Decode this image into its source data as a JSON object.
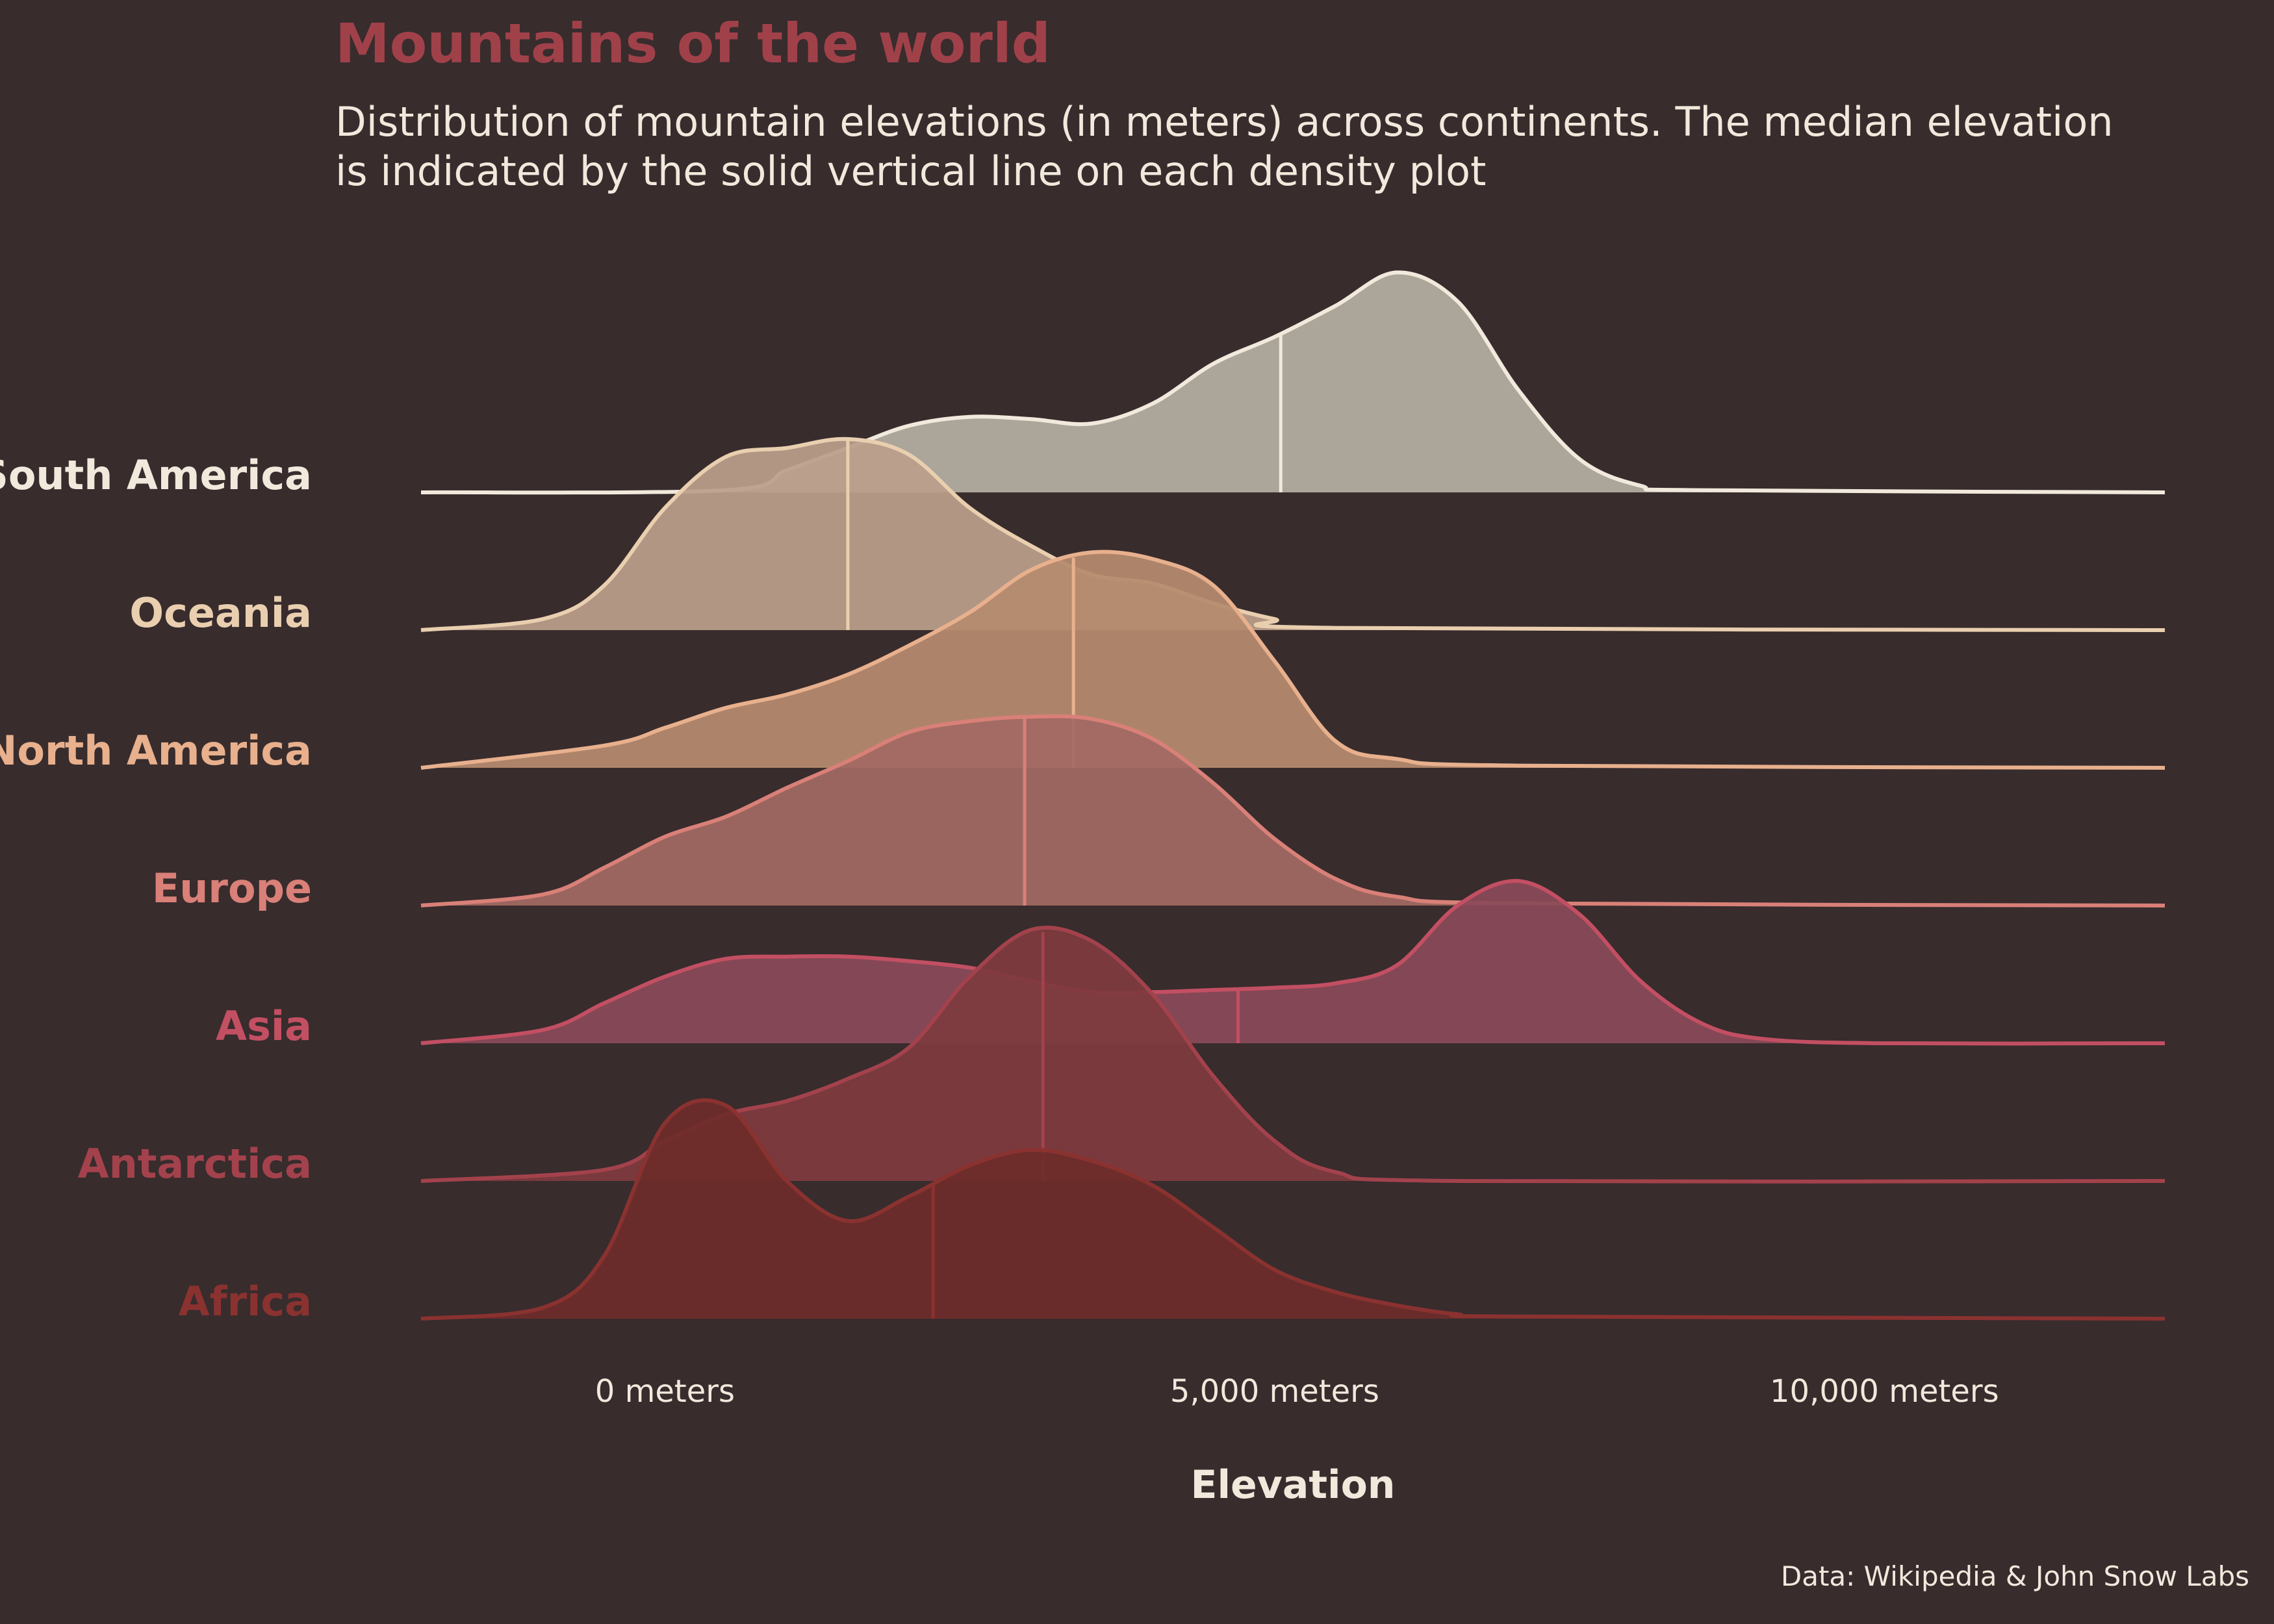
{
  "title": "Mountains of the world",
  "subtitle": "Distribution of mountain elevations (in meters) across continents. The median elevation is indicated by the solid vertical line on each density plot",
  "source": "Data: Wikipedia & John Snow Labs",
  "colors": {
    "background": "#382C2D",
    "text": "#F1E9DC",
    "title": "#A0414A"
  },
  "chart_data": {
    "type": "ridgeline density",
    "title": "Mountains of the world",
    "xlabel": "Elevation",
    "ylabel": "",
    "xlim": [
      -2000,
      12300
    ],
    "x_ticks": [
      {
        "value": 0,
        "label": "0 meters"
      },
      {
        "value": 5000,
        "label": "5,000 meters"
      },
      {
        "value": 10000,
        "label": "10,000 meters"
      }
    ],
    "grid": false,
    "legend": "none",
    "series": [
      {
        "name": "South America",
        "color": "#F1E9DC",
        "fill": "#B4AEA2",
        "median": 5050,
        "density": [
          [
            -2000,
            0
          ],
          [
            500,
            0.01
          ],
          [
            1000,
            0.1
          ],
          [
            1500,
            0.2
          ],
          [
            2000,
            0.3
          ],
          [
            2500,
            0.34
          ],
          [
            3000,
            0.33
          ],
          [
            3500,
            0.31
          ],
          [
            4000,
            0.4
          ],
          [
            4500,
            0.58
          ],
          [
            5000,
            0.7
          ],
          [
            5500,
            0.84
          ],
          [
            6000,
            0.99
          ],
          [
            6500,
            0.86
          ],
          [
            7000,
            0.46
          ],
          [
            7500,
            0.15
          ],
          [
            8000,
            0.03
          ],
          [
            8500,
            0.01
          ],
          [
            12300,
            0
          ]
        ]
      },
      {
        "name": "Oceania",
        "color": "#E9CFAF",
        "fill": "#BA9E8B",
        "median": 1500,
        "density": [
          [
            -2000,
            0
          ],
          [
            -1000,
            0.05
          ],
          [
            -500,
            0.2
          ],
          [
            0,
            0.55
          ],
          [
            500,
            0.78
          ],
          [
            1000,
            0.82
          ],
          [
            1500,
            0.86
          ],
          [
            2000,
            0.79
          ],
          [
            2500,
            0.55
          ],
          [
            3000,
            0.38
          ],
          [
            3500,
            0.25
          ],
          [
            4000,
            0.21
          ],
          [
            4500,
            0.12
          ],
          [
            5000,
            0.05
          ],
          [
            5500,
            0.01
          ],
          [
            12300,
            0
          ]
        ]
      },
      {
        "name": "North America",
        "color": "#E8B08D",
        "fill": "#B68B6F",
        "median": 3350,
        "density": [
          [
            -2000,
            0
          ],
          [
            -500,
            0.1
          ],
          [
            0,
            0.18
          ],
          [
            500,
            0.27
          ],
          [
            1000,
            0.33
          ],
          [
            1500,
            0.42
          ],
          [
            2000,
            0.55
          ],
          [
            2500,
            0.7
          ],
          [
            3000,
            0.89
          ],
          [
            3500,
            0.97
          ],
          [
            4000,
            0.94
          ],
          [
            4500,
            0.82
          ],
          [
            5000,
            0.48
          ],
          [
            5500,
            0.12
          ],
          [
            6000,
            0.04
          ],
          [
            7000,
            0.01
          ],
          [
            12300,
            0
          ]
        ]
      },
      {
        "name": "Europe",
        "color": "#D98078",
        "fill": "#A36963",
        "median": 2950,
        "density": [
          [
            -2000,
            0
          ],
          [
            -1000,
            0.05
          ],
          [
            -500,
            0.17
          ],
          [
            0,
            0.31
          ],
          [
            500,
            0.4
          ],
          [
            1000,
            0.53
          ],
          [
            1500,
            0.65
          ],
          [
            2000,
            0.78
          ],
          [
            2500,
            0.83
          ],
          [
            3000,
            0.85
          ],
          [
            3500,
            0.84
          ],
          [
            4000,
            0.75
          ],
          [
            4500,
            0.55
          ],
          [
            5000,
            0.3
          ],
          [
            5500,
            0.12
          ],
          [
            6000,
            0.04
          ],
          [
            7000,
            0.01
          ],
          [
            12300,
            0
          ]
        ]
      },
      {
        "name": "Asia",
        "color": "#C34F63",
        "fill": "#8A4958",
        "median": 4700,
        "density": [
          [
            -2000,
            0
          ],
          [
            -1000,
            0.06
          ],
          [
            -500,
            0.18
          ],
          [
            0,
            0.3
          ],
          [
            500,
            0.38
          ],
          [
            1000,
            0.39
          ],
          [
            1500,
            0.39
          ],
          [
            2000,
            0.37
          ],
          [
            2500,
            0.34
          ],
          [
            3000,
            0.28
          ],
          [
            3500,
            0.23
          ],
          [
            4000,
            0.23
          ],
          [
            4500,
            0.24
          ],
          [
            5000,
            0.25
          ],
          [
            5500,
            0.27
          ],
          [
            6000,
            0.35
          ],
          [
            6500,
            0.62
          ],
          [
            7000,
            0.73
          ],
          [
            7500,
            0.58
          ],
          [
            8000,
            0.28
          ],
          [
            8500,
            0.09
          ],
          [
            9000,
            0.02
          ],
          [
            10000,
            0
          ],
          [
            12300,
            0
          ]
        ]
      },
      {
        "name": "Antarctica",
        "color": "#A3424C",
        "fill": "#7E3A3E",
        "median": 3100,
        "density": [
          [
            -2000,
            0
          ],
          [
            -500,
            0.05
          ],
          [
            0,
            0.18
          ],
          [
            500,
            0.3
          ],
          [
            1000,
            0.36
          ],
          [
            1500,
            0.46
          ],
          [
            2000,
            0.6
          ],
          [
            2500,
            0.92
          ],
          [
            3000,
            1.13
          ],
          [
            3500,
            1.08
          ],
          [
            4000,
            0.84
          ],
          [
            4500,
            0.47
          ],
          [
            5000,
            0.18
          ],
          [
            5500,
            0.04
          ],
          [
            6500,
            0
          ],
          [
            12300,
            0
          ]
        ]
      },
      {
        "name": "Africa",
        "color": "#8A3230",
        "fill": "#6E2C2A",
        "median": 2200,
        "density": [
          [
            -2000,
            0
          ],
          [
            -1000,
            0.05
          ],
          [
            -500,
            0.28
          ],
          [
            0,
            0.88
          ],
          [
            500,
            0.96
          ],
          [
            1000,
            0.62
          ],
          [
            1500,
            0.44
          ],
          [
            2000,
            0.55
          ],
          [
            2500,
            0.69
          ],
          [
            3000,
            0.76
          ],
          [
            3500,
            0.71
          ],
          [
            4000,
            0.6
          ],
          [
            4500,
            0.41
          ],
          [
            5000,
            0.22
          ],
          [
            5500,
            0.12
          ],
          [
            6000,
            0.06
          ],
          [
            6500,
            0.02
          ],
          [
            7000,
            0.01
          ],
          [
            12300,
            0
          ]
        ]
      }
    ]
  }
}
